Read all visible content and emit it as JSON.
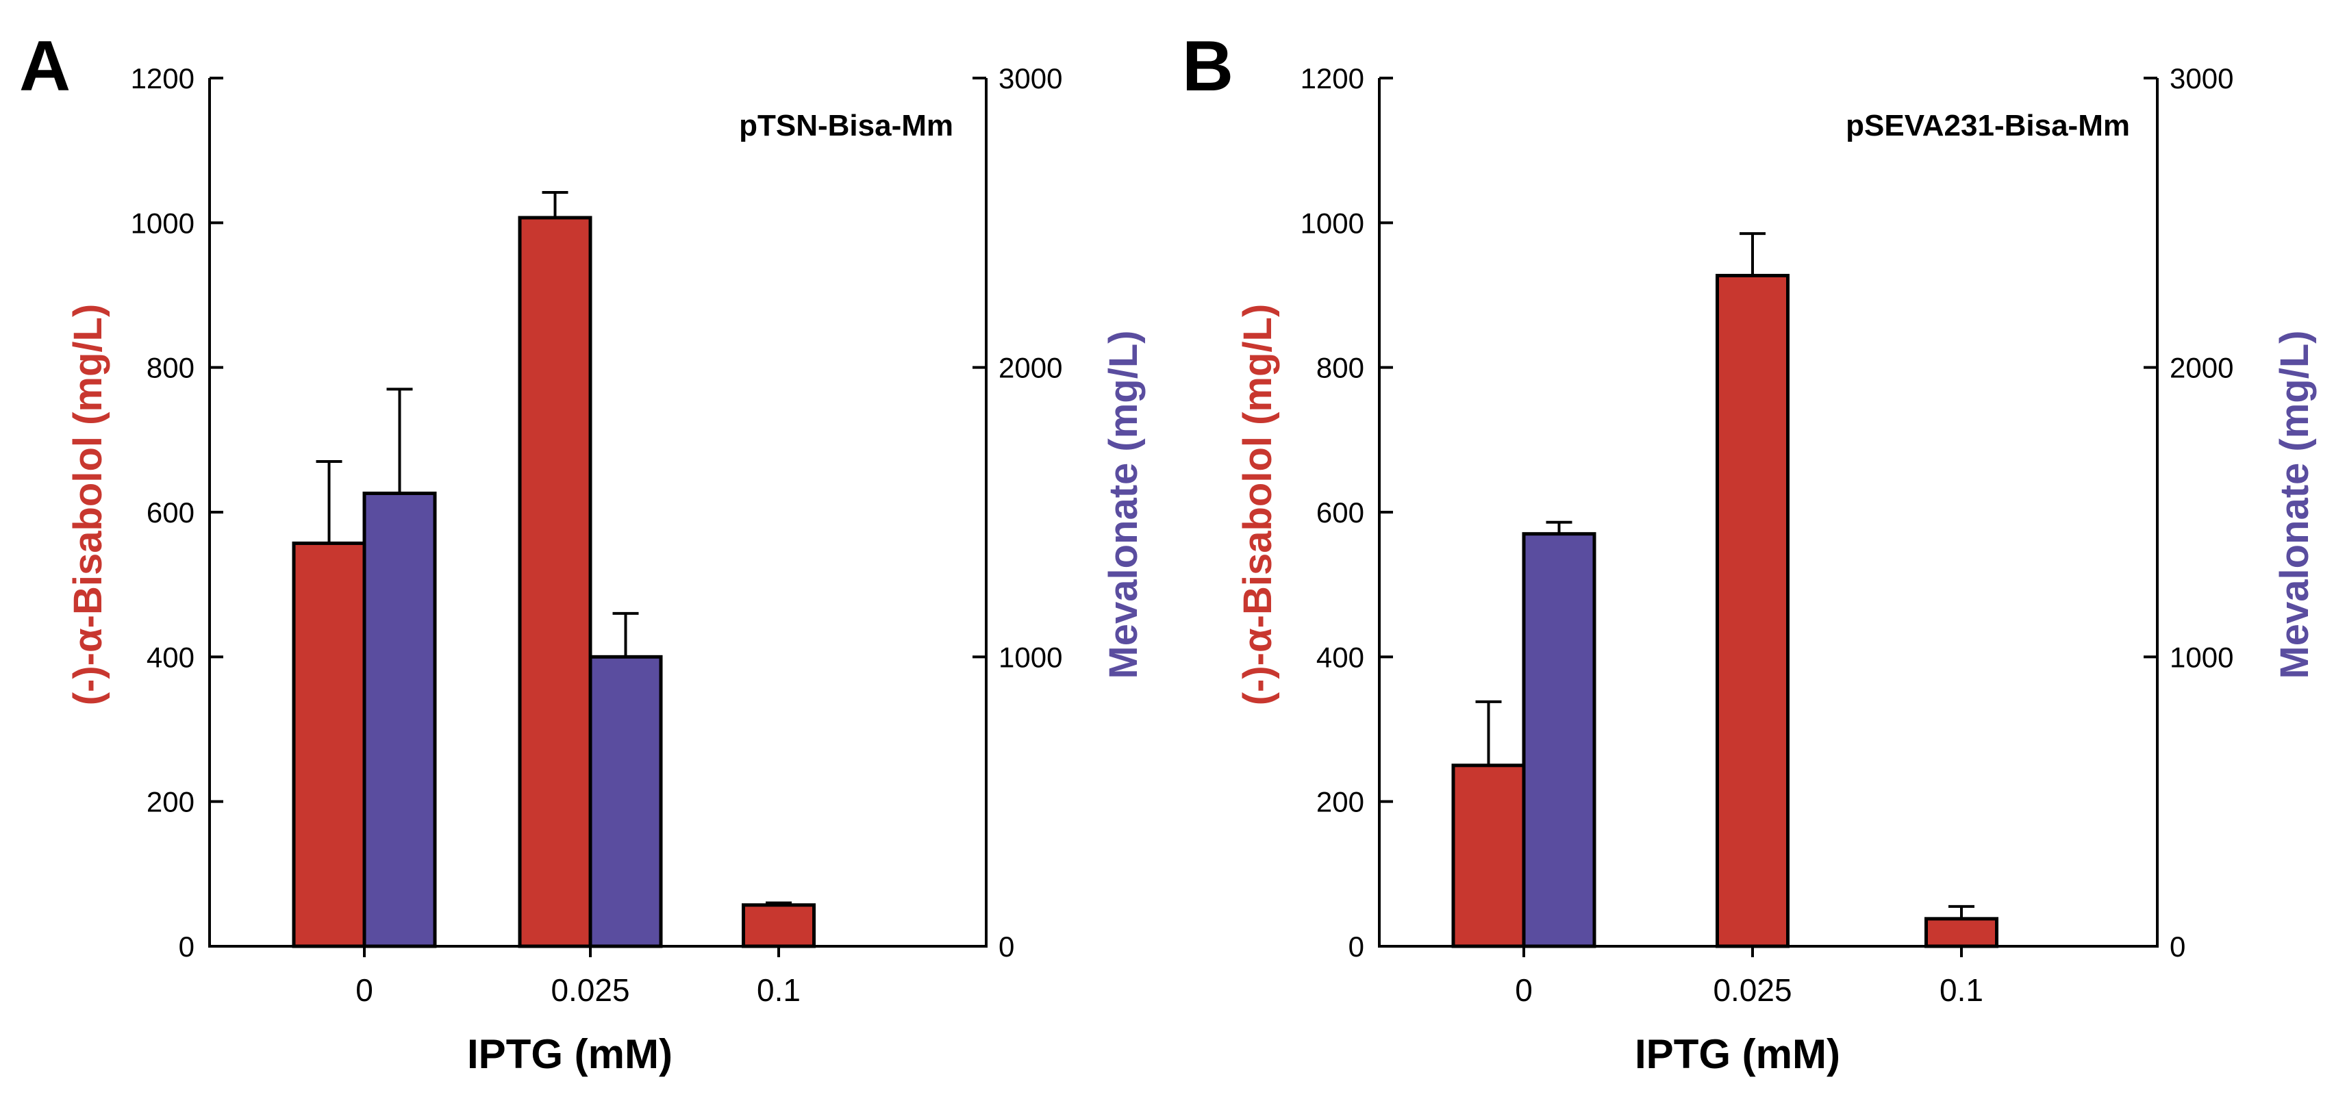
{
  "chart_data": [
    {
      "type": "bar",
      "panel": "A",
      "annotation": "pTSN-Bisa-Mm",
      "xlabel": "IPTG (mM)",
      "ylabel": "(-)-α-Bisabolol (mg/L)",
      "ylabel_right": "Mevalonate (mg/L)",
      "ylim": [
        0,
        1200
      ],
      "ylim_right": [
        0,
        3000
      ],
      "yticks": [
        0,
        200,
        400,
        600,
        800,
        1000,
        1200
      ],
      "yticks_right": [
        0,
        1000,
        2000,
        3000
      ],
      "categories": [
        "0",
        "0.025",
        "0.1"
      ],
      "series": [
        {
          "name": "(-)-α-Bisabolol",
          "axis": "left",
          "color": "#c8372f",
          "values": [
            557,
            1007,
            57
          ],
          "errors": [
            113,
            35,
            3
          ]
        },
        {
          "name": "Mevalonate",
          "axis": "right",
          "color": "#5a4d9f",
          "values": [
            1565,
            1000,
            null
          ],
          "errors": [
            360,
            150,
            null
          ]
        }
      ]
    },
    {
      "type": "bar",
      "panel": "B",
      "annotation": "pSEVA231-Bisa-Mm",
      "xlabel": "IPTG (mM)",
      "ylabel": "(-)-α-Bisabolol (mg/L)",
      "ylabel_right": "Mevalonate (mg/L)",
      "ylim": [
        0,
        1200
      ],
      "ylim_right": [
        0,
        3000
      ],
      "yticks": [
        0,
        200,
        400,
        600,
        800,
        1000,
        1200
      ],
      "yticks_right": [
        0,
        1000,
        2000,
        3000
      ],
      "categories": [
        "0",
        "0.025",
        "0.1"
      ],
      "series": [
        {
          "name": "(-)-α-Bisabolol",
          "axis": "left",
          "color": "#c8372f",
          "values": [
            250,
            927,
            38
          ],
          "errors": [
            88,
            58,
            17
          ]
        },
        {
          "name": "Mevalonate",
          "axis": "right",
          "color": "#5a4d9f",
          "values": [
            1425,
            null,
            null
          ],
          "errors": [
            40,
            null,
            null
          ]
        }
      ]
    }
  ]
}
